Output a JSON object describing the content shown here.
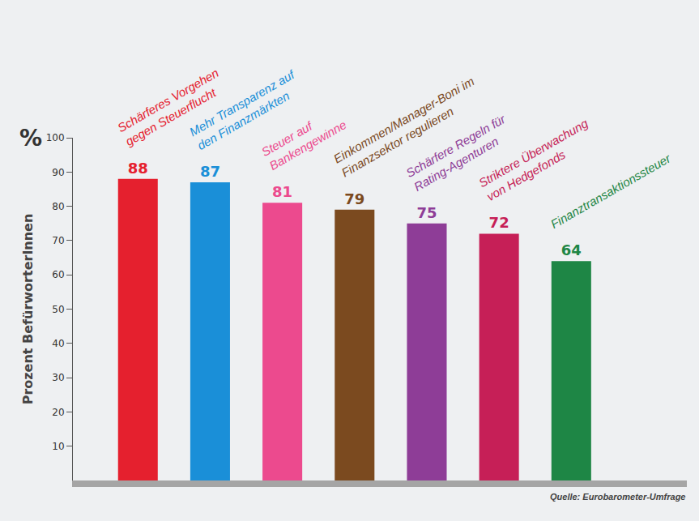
{
  "chart_data": {
    "type": "bar",
    "categories": [
      "Schärferes Vorgehen gegen Steuerflucht",
      "Mehr Transparenz auf den Finanzmärkten",
      "Steuer auf Bankengewinne",
      "Einkommen/Manager-Boni im Finanzsektor regulieren",
      "Schärfere Regeln für Rating-Agenturen",
      "Striktere Überwachung von Hedgefonds",
      "Finanztransaktionssteuer"
    ],
    "values": [
      88,
      87,
      81,
      79,
      75,
      72,
      64
    ],
    "colors": [
      "#e5202e",
      "#1a8fd8",
      "#ec4a8e",
      "#7b4a1f",
      "#8e3d97",
      "#c61f57",
      "#1e8645"
    ],
    "y_label": "Prozent BefürworterInnen",
    "y_unit": "%",
    "source": "Quelle: Eurobarometer-Umfrage",
    "ylim": [
      0,
      100
    ],
    "yticks": [
      10,
      20,
      30,
      40,
      50,
      60,
      70,
      80,
      90,
      100
    ],
    "grid": false,
    "data_labels": true,
    "tick_labels": "y"
  }
}
